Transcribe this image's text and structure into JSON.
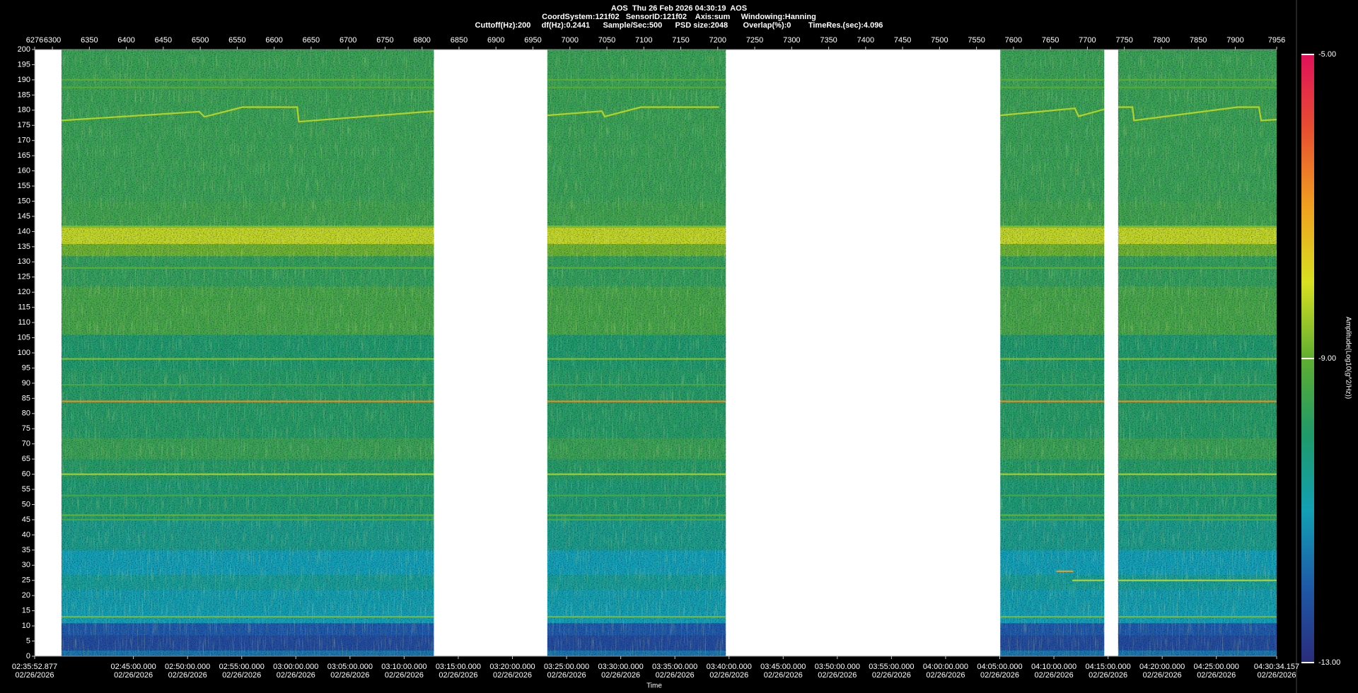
{
  "chart_data": {
    "type": "spectrogram",
    "title": "AOS  Thu 26 Feb 2026 04:30:19  AOS",
    "subtitle": [
      "CoordSystem:121f02   SensorID:121f02    Axis:sum     Windowing:Hanning",
      "Cuttoff(Hz):200     df(Hz):0.2441      Sample/Sec:500      PSD size:2048       Overlap(%):0        TimeRes.(sec):4.096"
    ],
    "xlabel": "Time",
    "xlim": [
      6276,
      7956
    ],
    "xticks": [
      6276,
      6300,
      6350,
      6400,
      6450,
      6500,
      6550,
      6600,
      6650,
      6700,
      6750,
      6800,
      6850,
      6900,
      6950,
      7000,
      7050,
      7100,
      7150,
      7200,
      7250,
      7300,
      7350,
      7400,
      7450,
      7500,
      7550,
      7600,
      7650,
      7700,
      7750,
      7800,
      7850,
      7900,
      7956
    ],
    "time_ticks": [
      {
        "value": 6276,
        "label": "02:35:52.877"
      },
      {
        "value": 6409.57,
        "label": "02:45:00.000"
      },
      {
        "value": 6482.82,
        "label": "02:50:00.000"
      },
      {
        "value": 6556.06,
        "label": "02:55:00.000"
      },
      {
        "value": 6629.3,
        "label": "03:00:00.000"
      },
      {
        "value": 6702.54,
        "label": "03:05:00.000"
      },
      {
        "value": 6775.78,
        "label": "03:10:00.000"
      },
      {
        "value": 6849.02,
        "label": "03:15:00.000"
      },
      {
        "value": 6922.27,
        "label": "03:20:00.000"
      },
      {
        "value": 6995.51,
        "label": "03:25:00.000"
      },
      {
        "value": 7068.75,
        "label": "03:30:00.000"
      },
      {
        "value": 7141.99,
        "label": "03:35:00.000"
      },
      {
        "value": 7215.23,
        "label": "03:40:00.000"
      },
      {
        "value": 7288.48,
        "label": "03:45:00.000"
      },
      {
        "value": 7361.72,
        "label": "03:50:00.000"
      },
      {
        "value": 7434.96,
        "label": "03:55:00.000"
      },
      {
        "value": 7508.2,
        "label": "04:00:00.000"
      },
      {
        "value": 7581.44,
        "label": "04:05:00.000"
      },
      {
        "value": 7654.69,
        "label": "04:10:00.000"
      },
      {
        "value": 7727.93,
        "label": "04:15:00.000"
      },
      {
        "value": 7801.17,
        "label": "04:20:00.000"
      },
      {
        "value": 7874.41,
        "label": "04:25:00.000"
      },
      {
        "value": 7956,
        "label": "04:30:34.157"
      }
    ],
    "time_tick_dates": [
      "02/26/2026",
      "02/26/2026",
      "02/26/2026",
      "02/26/2026",
      "02/26/2026",
      "02/26/2026",
      "02/26/2026",
      "02/26/2026",
      "02/26/2026",
      "02/26/2026",
      "02/26/2026",
      "02/26/2026",
      "02/26/2026",
      "02/26/2026",
      "02/26/2026",
      "02/26/2026",
      "02/26/2026",
      "02/26/2026",
      "02/26/2026",
      "02/26/2026",
      "02/26/2026",
      "02/26/2026",
      "02/26/2026"
    ],
    "ylim": [
      0,
      200
    ],
    "yticks": [
      0,
      5,
      10,
      15,
      20,
      25,
      30,
      35,
      40,
      45,
      50,
      55,
      60,
      65,
      70,
      75,
      80,
      85,
      90,
      95,
      100,
      105,
      110,
      115,
      120,
      125,
      130,
      135,
      140,
      145,
      150,
      155,
      160,
      165,
      170,
      175,
      180,
      185,
      190,
      195,
      200
    ],
    "clabel": "Amplitude(Log10(g^2/Hz))",
    "clim": [
      -13,
      -5
    ],
    "cticks": [
      {
        "value": -13,
        "label": "-13.00"
      },
      {
        "value": -9,
        "label": "-9.00"
      },
      {
        "value": -5,
        "label": "-5.00"
      }
    ],
    "colormap": [
      "#2a2c7c",
      "#1e5aa8",
      "#12a0b4",
      "#1f9a6a",
      "#5fae30",
      "#d9e021",
      "#f0a020",
      "#e85030",
      "#e0105a"
    ],
    "segments": [
      {
        "start": 6312.3,
        "end": 6816
      },
      {
        "start": 6969.5,
        "end": 7210.9
      },
      {
        "start": 7582.2,
        "end": 7722.8
      },
      {
        "start": 7741.6,
        "end": 7956
      }
    ],
    "bands": [
      {
        "low": 0,
        "high": 2,
        "amplitude": -11.6
      },
      {
        "low": 2,
        "high": 7,
        "amplitude": -12.3
      },
      {
        "low": 7,
        "high": 11,
        "amplitude": -12.0
      },
      {
        "low": 11,
        "high": 15,
        "amplitude": -11.0
      },
      {
        "low": 15,
        "high": 22,
        "amplitude": -10.9
      },
      {
        "low": 22,
        "high": 27,
        "amplitude": -10.6
      },
      {
        "low": 27,
        "high": 35,
        "amplitude": -11.0
      },
      {
        "low": 35,
        "high": 45,
        "amplitude": -10.4
      },
      {
        "low": 45,
        "high": 58,
        "amplitude": -10.1
      },
      {
        "low": 58,
        "high": 65,
        "amplitude": -9.9
      },
      {
        "low": 65,
        "high": 72,
        "amplitude": -9.6
      },
      {
        "low": 72,
        "high": 95,
        "amplitude": -9.9
      },
      {
        "low": 95,
        "high": 106,
        "amplitude": -10.0
      },
      {
        "low": 106,
        "high": 122,
        "amplitude": -9.4
      },
      {
        "low": 122,
        "high": 132,
        "amplitude": -9.7
      },
      {
        "low": 132,
        "high": 136,
        "amplitude": -8.9
      },
      {
        "low": 136,
        "high": 142,
        "amplitude": -8.2
      },
      {
        "low": 142,
        "high": 150,
        "amplitude": -9.5
      },
      {
        "low": 150,
        "high": 200,
        "amplitude": -9.6
      }
    ],
    "tones": [
      {
        "frequency": 190,
        "amplitude": -9.0,
        "x": [
          6276,
          7956
        ]
      },
      {
        "frequency": 187.5,
        "amplitude": -9.1,
        "x": [
          6276,
          7956
        ]
      },
      {
        "frequency": 141.5,
        "amplitude": -8.8,
        "x": [
          6276,
          7956
        ]
      },
      {
        "frequency": 128,
        "amplitude": -9.0,
        "x": [
          6276,
          7956
        ]
      },
      {
        "frequency": 98,
        "amplitude": -8.6,
        "x": [
          6276,
          7956
        ]
      },
      {
        "frequency": 89.5,
        "amplitude": -9.3,
        "x": [
          6276,
          7956
        ]
      },
      {
        "frequency": 84,
        "amplitude": -6.8,
        "x": [
          6276,
          7956
        ]
      },
      {
        "frequency": 60,
        "amplitude": -8.3,
        "x": [
          6276,
          7956
        ]
      },
      {
        "frequency": 53,
        "amplitude": -9.3,
        "x": [
          6276,
          7956
        ]
      },
      {
        "frequency": 46.5,
        "amplitude": -8.9,
        "x": [
          6276,
          7956
        ]
      },
      {
        "frequency": 45,
        "amplitude": -9.2,
        "x": [
          6276,
          7956
        ]
      },
      {
        "frequency": 13,
        "amplitude": -8.7,
        "x": [
          6276,
          7956
        ]
      },
      {
        "frequency": 25,
        "amplitude": -8.2,
        "x": [
          7679.5,
          7956
        ]
      },
      {
        "frequency": 28,
        "amplitude": -7.0,
        "x": [
          7658,
          7681
        ]
      }
    ],
    "drift": {
      "amplitude": -8.3,
      "x": [
        6312.3,
        6498.6,
        6505.6,
        6557.2,
        6631,
        6633.3,
        6816,
        null,
        6969.5,
        7043.3,
        7047,
        7096,
        7201.5,
        null,
        7582.2,
        7683,
        7688,
        7722.8,
        null,
        7741.6,
        7761,
        7763,
        7903,
        7932,
        7935,
        7956
      ],
      "values": [
        176.6,
        179.5,
        177.8,
        181,
        181,
        176.2,
        179.7,
        null,
        178.3,
        179.7,
        177.9,
        181,
        181,
        null,
        178.3,
        180.6,
        178,
        180.3,
        null,
        181,
        181,
        176.6,
        181,
        181,
        176.6,
        176.9
      ]
    }
  }
}
